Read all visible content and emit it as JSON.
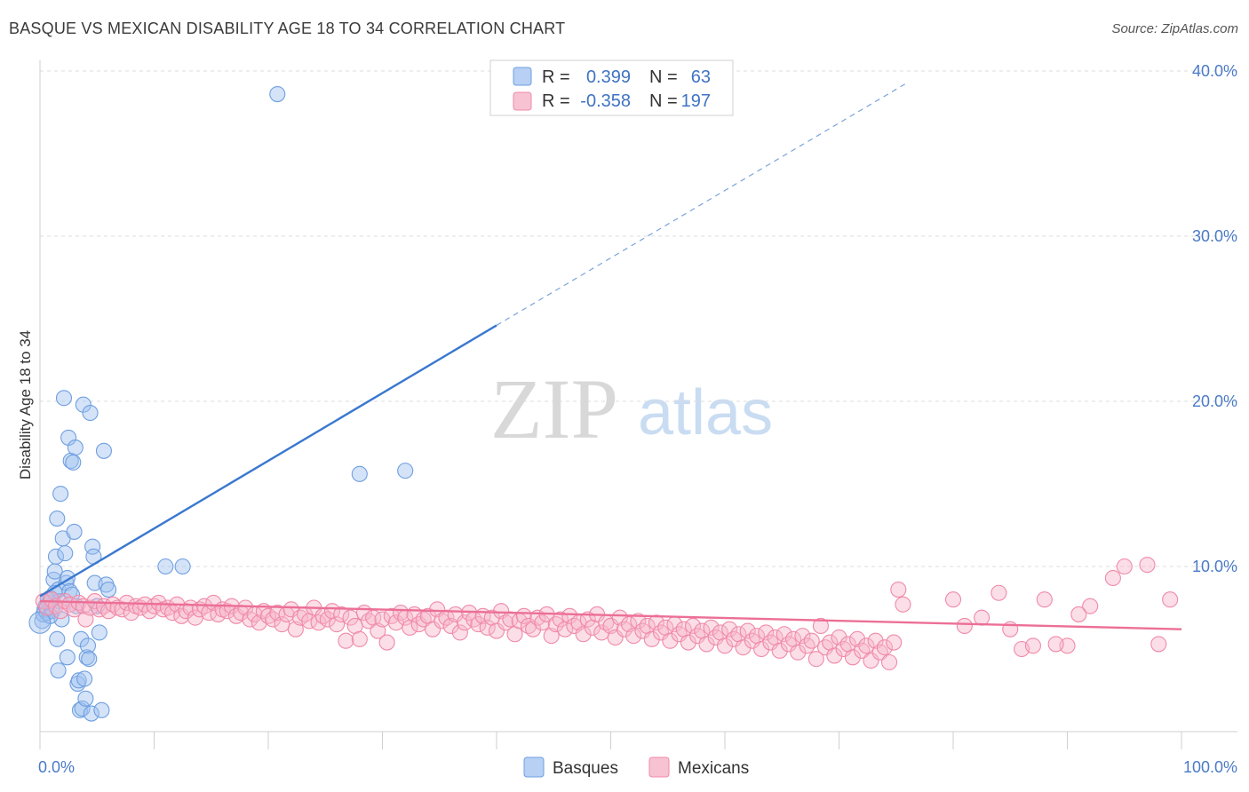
{
  "title": "BASQUE VS MEXICAN DISABILITY AGE 18 TO 34 CORRELATION CHART",
  "source": "Source: ZipAtlas.com",
  "watermark": {
    "zip": "ZIP",
    "atlas": "atlas"
  },
  "legend": {
    "rows": [
      {
        "r_label": "R =",
        "r_value": "0.399",
        "n_label": "N =",
        "n_value": "63",
        "color": "#6f9fe0"
      },
      {
        "r_label": "R =",
        "r_value": "-0.358",
        "n_label": "N =",
        "n_value": "197",
        "color": "#f08aa8"
      }
    ]
  },
  "bottom_legend": [
    {
      "label": "Basques",
      "color": "#6f9fe0"
    },
    {
      "label": "Mexicans",
      "color": "#f08aa8"
    }
  ],
  "chart_data": {
    "type": "scatter",
    "title": "BASQUE VS MEXICAN DISABILITY AGE 18 TO 34 CORRELATION CHART",
    "xlabel": "",
    "ylabel": "Disability Age 18 to 34",
    "xlim": [
      0,
      100
    ],
    "ylim": [
      0,
      40
    ],
    "x_tick_labels": [
      "0.0%",
      "100.0%"
    ],
    "y_ticks": [
      10,
      20,
      30,
      40
    ],
    "y_tick_labels": [
      "10.0%",
      "20.0%",
      "30.0%",
      "40.0%"
    ],
    "grid": true,
    "series": [
      {
        "name": "Basques",
        "color": "#6f9fe0",
        "trend": {
          "x0": 0,
          "y0": 8.2,
          "x1": 40,
          "y1": 24.6,
          "dash_x1": 76,
          "dash_y1": 39.3
        },
        "points": [
          [
            0.2,
            6.7
          ],
          [
            0.3,
            7.1
          ],
          [
            0.4,
            7.4
          ],
          [
            0.5,
            7.6
          ],
          [
            0.6,
            7.2
          ],
          [
            0.7,
            8.0
          ],
          [
            0.8,
            7.8
          ],
          [
            0.9,
            8.1
          ],
          [
            1.0,
            7.5
          ],
          [
            1.1,
            7.3
          ],
          [
            1.2,
            9.2
          ],
          [
            1.3,
            9.7
          ],
          [
            1.4,
            10.6
          ],
          [
            1.5,
            12.9
          ],
          [
            1.6,
            8.6
          ],
          [
            1.7,
            7.9
          ],
          [
            1.8,
            14.4
          ],
          [
            1.9,
            6.8
          ],
          [
            2.0,
            11.7
          ],
          [
            2.1,
            20.2
          ],
          [
            2.2,
            10.8
          ],
          [
            2.3,
            9.0
          ],
          [
            2.4,
            9.3
          ],
          [
            2.5,
            17.8
          ],
          [
            2.6,
            8.5
          ],
          [
            2.7,
            16.4
          ],
          [
            2.8,
            8.3
          ],
          [
            2.9,
            16.3
          ],
          [
            3.0,
            12.1
          ],
          [
            3.1,
            17.2
          ],
          [
            3.2,
            7.6
          ],
          [
            3.3,
            2.9
          ],
          [
            3.4,
            3.1
          ],
          [
            3.5,
            1.3
          ],
          [
            3.6,
            5.6
          ],
          [
            3.7,
            1.4
          ],
          [
            3.8,
            19.8
          ],
          [
            3.9,
            3.2
          ],
          [
            4.0,
            2.0
          ],
          [
            4.1,
            4.5
          ],
          [
            4.2,
            5.2
          ],
          [
            4.3,
            4.4
          ],
          [
            4.4,
            19.3
          ],
          [
            4.5,
            1.1
          ],
          [
            4.6,
            11.2
          ],
          [
            4.7,
            10.6
          ],
          [
            4.8,
            9.0
          ],
          [
            5.0,
            7.6
          ],
          [
            5.2,
            6.0
          ],
          [
            5.4,
            1.3
          ],
          [
            5.6,
            17.0
          ],
          [
            5.8,
            8.9
          ],
          [
            6.0,
            8.6
          ],
          [
            1.5,
            5.6
          ],
          [
            2.4,
            4.5
          ],
          [
            1.6,
            3.7
          ],
          [
            0.9,
            7.0
          ],
          [
            1.3,
            8.4
          ],
          [
            11,
            10.0
          ],
          [
            12.5,
            10.0
          ],
          [
            20.8,
            38.6
          ],
          [
            28,
            15.6
          ],
          [
            32,
            15.8
          ]
        ]
      },
      {
        "name": "Mexicans",
        "color": "#f08aa8",
        "trend": {
          "x0": 0,
          "y0": 7.9,
          "x1": 100,
          "y1": 6.2
        },
        "points": [
          [
            0.3,
            7.9
          ],
          [
            0.6,
            7.5
          ],
          [
            1.0,
            8.0
          ],
          [
            1.4,
            7.6
          ],
          [
            1.8,
            7.3
          ],
          [
            2.2,
            7.9
          ],
          [
            2.6,
            7.7
          ],
          [
            3.0,
            7.4
          ],
          [
            3.4,
            7.8
          ],
          [
            3.8,
            7.6
          ],
          [
            4.0,
            6.8
          ],
          [
            4.4,
            7.5
          ],
          [
            4.8,
            7.9
          ],
          [
            5.2,
            7.4
          ],
          [
            5.6,
            7.6
          ],
          [
            6.0,
            7.3
          ],
          [
            6.4,
            7.7
          ],
          [
            6.8,
            7.5
          ],
          [
            7.2,
            7.4
          ],
          [
            7.6,
            7.8
          ],
          [
            8.0,
            7.2
          ],
          [
            8.4,
            7.6
          ],
          [
            8.8,
            7.5
          ],
          [
            9.2,
            7.7
          ],
          [
            9.6,
            7.3
          ],
          [
            10.0,
            7.6
          ],
          [
            10.4,
            7.8
          ],
          [
            10.8,
            7.4
          ],
          [
            11.2,
            7.5
          ],
          [
            11.6,
            7.2
          ],
          [
            12.0,
            7.7
          ],
          [
            12.4,
            7.0
          ],
          [
            12.8,
            7.3
          ],
          [
            13.2,
            7.5
          ],
          [
            13.6,
            6.9
          ],
          [
            14.0,
            7.4
          ],
          [
            14.4,
            7.6
          ],
          [
            14.8,
            7.2
          ],
          [
            15.2,
            7.8
          ],
          [
            15.6,
            7.1
          ],
          [
            16.0,
            7.4
          ],
          [
            16.4,
            7.3
          ],
          [
            16.8,
            7.6
          ],
          [
            17.2,
            7.0
          ],
          [
            17.6,
            7.2
          ],
          [
            18.0,
            7.5
          ],
          [
            18.4,
            6.8
          ],
          [
            18.8,
            7.1
          ],
          [
            19.2,
            6.6
          ],
          [
            19.6,
            7.3
          ],
          [
            20.0,
            7.0
          ],
          [
            20.4,
            6.8
          ],
          [
            20.8,
            7.2
          ],
          [
            21.2,
            6.5
          ],
          [
            21.6,
            7.1
          ],
          [
            22.0,
            7.4
          ],
          [
            22.4,
            6.2
          ],
          [
            22.8,
            6.9
          ],
          [
            23.2,
            7.1
          ],
          [
            23.6,
            6.7
          ],
          [
            24.0,
            7.5
          ],
          [
            24.4,
            6.6
          ],
          [
            24.8,
            7.0
          ],
          [
            25.2,
            6.8
          ],
          [
            25.6,
            7.3
          ],
          [
            26.0,
            6.5
          ],
          [
            26.4,
            7.1
          ],
          [
            26.8,
            5.5
          ],
          [
            27.2,
            6.9
          ],
          [
            27.6,
            6.4
          ],
          [
            28.0,
            5.6
          ],
          [
            28.4,
            7.2
          ],
          [
            28.8,
            6.7
          ],
          [
            29.2,
            6.9
          ],
          [
            29.6,
            6.1
          ],
          [
            30.0,
            6.8
          ],
          [
            30.4,
            5.4
          ],
          [
            30.8,
            7.0
          ],
          [
            31.2,
            6.6
          ],
          [
            31.6,
            7.2
          ],
          [
            32.0,
            6.9
          ],
          [
            32.4,
            6.3
          ],
          [
            32.8,
            7.1
          ],
          [
            33.2,
            6.5
          ],
          [
            33.6,
            6.8
          ],
          [
            34.0,
            7.0
          ],
          [
            34.4,
            6.2
          ],
          [
            34.8,
            7.4
          ],
          [
            35.2,
            6.7
          ],
          [
            35.6,
            6.9
          ],
          [
            36.0,
            6.4
          ],
          [
            36.4,
            7.1
          ],
          [
            36.8,
            6.0
          ],
          [
            37.2,
            6.6
          ],
          [
            37.6,
            7.2
          ],
          [
            38.0,
            6.8
          ],
          [
            38.4,
            6.5
          ],
          [
            38.8,
            7.0
          ],
          [
            39.2,
            6.3
          ],
          [
            39.6,
            6.9
          ],
          [
            40.0,
            6.1
          ],
          [
            40.4,
            7.3
          ],
          [
            40.8,
            6.6
          ],
          [
            41.2,
            6.8
          ],
          [
            41.6,
            5.9
          ],
          [
            42.0,
            6.7
          ],
          [
            42.4,
            7.0
          ],
          [
            42.8,
            6.4
          ],
          [
            43.2,
            6.2
          ],
          [
            43.6,
            6.9
          ],
          [
            44.0,
            6.6
          ],
          [
            44.4,
            7.1
          ],
          [
            44.8,
            5.8
          ],
          [
            45.2,
            6.5
          ],
          [
            45.6,
            6.8
          ],
          [
            46.0,
            6.2
          ],
          [
            46.4,
            7.0
          ],
          [
            46.8,
            6.4
          ],
          [
            47.2,
            6.6
          ],
          [
            47.6,
            5.9
          ],
          [
            48.0,
            6.8
          ],
          [
            48.4,
            6.3
          ],
          [
            48.8,
            7.1
          ],
          [
            49.2,
            6.0
          ],
          [
            49.6,
            6.6
          ],
          [
            50.0,
            6.4
          ],
          [
            50.4,
            5.7
          ],
          [
            50.8,
            6.9
          ],
          [
            51.2,
            6.2
          ],
          [
            51.6,
            6.5
          ],
          [
            52.0,
            5.8
          ],
          [
            52.4,
            6.7
          ],
          [
            52.8,
            6.1
          ],
          [
            53.2,
            6.4
          ],
          [
            53.6,
            5.6
          ],
          [
            54.0,
            6.6
          ],
          [
            54.4,
            6.0
          ],
          [
            54.8,
            6.3
          ],
          [
            55.2,
            5.5
          ],
          [
            55.6,
            6.5
          ],
          [
            56.0,
            5.9
          ],
          [
            56.4,
            6.2
          ],
          [
            56.8,
            5.4
          ],
          [
            57.2,
            6.4
          ],
          [
            57.6,
            5.8
          ],
          [
            58.0,
            6.1
          ],
          [
            58.4,
            5.3
          ],
          [
            58.8,
            6.3
          ],
          [
            59.2,
            5.7
          ],
          [
            59.6,
            6.0
          ],
          [
            60.0,
            5.2
          ],
          [
            60.4,
            6.2
          ],
          [
            60.8,
            5.6
          ],
          [
            61.2,
            5.9
          ],
          [
            61.6,
            5.1
          ],
          [
            62.0,
            6.1
          ],
          [
            62.4,
            5.5
          ],
          [
            62.8,
            5.8
          ],
          [
            63.2,
            5.0
          ],
          [
            63.6,
            6.0
          ],
          [
            64.0,
            5.4
          ],
          [
            64.4,
            5.7
          ],
          [
            64.8,
            4.9
          ],
          [
            65.2,
            5.9
          ],
          [
            65.6,
            5.3
          ],
          [
            66.0,
            5.6
          ],
          [
            66.4,
            4.8
          ],
          [
            66.8,
            5.8
          ],
          [
            67.2,
            5.2
          ],
          [
            67.6,
            5.5
          ],
          [
            68.0,
            4.4
          ],
          [
            68.4,
            6.4
          ],
          [
            68.8,
            5.1
          ],
          [
            69.2,
            5.4
          ],
          [
            69.6,
            4.6
          ],
          [
            70.0,
            5.7
          ],
          [
            70.4,
            5.0
          ],
          [
            70.8,
            5.3
          ],
          [
            71.2,
            4.5
          ],
          [
            71.6,
            5.6
          ],
          [
            72.0,
            4.9
          ],
          [
            72.4,
            5.2
          ],
          [
            72.8,
            4.3
          ],
          [
            73.2,
            5.5
          ],
          [
            73.6,
            4.8
          ],
          [
            74.0,
            5.1
          ],
          [
            74.4,
            4.2
          ],
          [
            74.8,
            5.4
          ],
          [
            75.2,
            8.6
          ],
          [
            75.6,
            7.7
          ],
          [
            80.0,
            8.0
          ],
          [
            81.0,
            6.4
          ],
          [
            82.5,
            6.9
          ],
          [
            84.0,
            8.4
          ],
          [
            85.0,
            6.2
          ],
          [
            86.0,
            5.0
          ],
          [
            88.0,
            8.0
          ],
          [
            90.0,
            5.2
          ],
          [
            92.0,
            7.6
          ],
          [
            94.0,
            9.3
          ],
          [
            95.0,
            10.0
          ],
          [
            97.0,
            10.1
          ],
          [
            98.0,
            5.3
          ],
          [
            99.0,
            8.0
          ],
          [
            91.0,
            7.1
          ],
          [
            89.0,
            5.3
          ],
          [
            87.0,
            5.2
          ]
        ]
      }
    ]
  }
}
